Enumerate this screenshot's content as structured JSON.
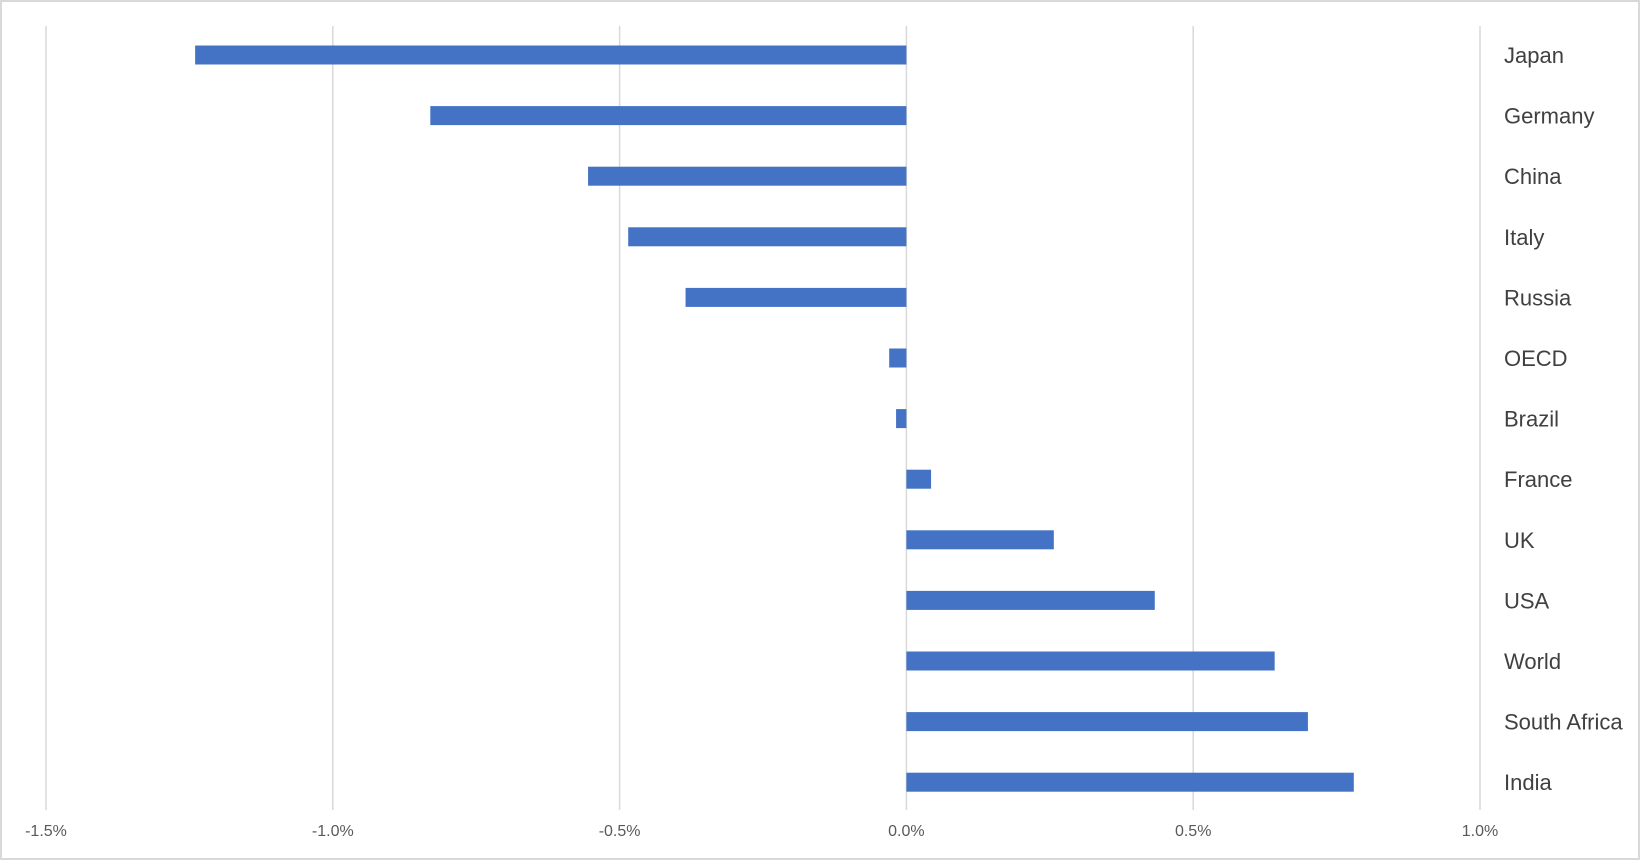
{
  "chart_data": {
    "type": "bar",
    "orientation": "horizontal",
    "categories": [
      "Japan",
      "Germany",
      "China",
      "Italy",
      "Russia",
      "OECD",
      "Brazil",
      "France",
      "UK",
      "USA",
      "World",
      "South Africa",
      "India"
    ],
    "values": [
      -1.24,
      -0.83,
      -0.555,
      -0.485,
      -0.385,
      -0.03,
      -0.018,
      0.043,
      0.257,
      0.433,
      0.642,
      0.7,
      0.78
    ],
    "value_unit": "%",
    "xlim": [
      -1.5,
      1.0
    ],
    "xticks": [
      -1.5,
      -1.0,
      -0.5,
      0.0,
      0.5,
      1.0
    ],
    "xtick_labels": [
      "-1.5%",
      "-1.0%",
      "-0.5%",
      "0.0%",
      "0.5%",
      "1.0%"
    ],
    "title": "",
    "xlabel": "",
    "ylabel": "",
    "grid": "vertical",
    "legend": "none",
    "category_labels_position": "right",
    "colors": {
      "bar": "#4472c4",
      "grid": "#d9d9d9",
      "label": "#404040",
      "tick": "#595959",
      "frame": "#d9d9d9"
    }
  }
}
